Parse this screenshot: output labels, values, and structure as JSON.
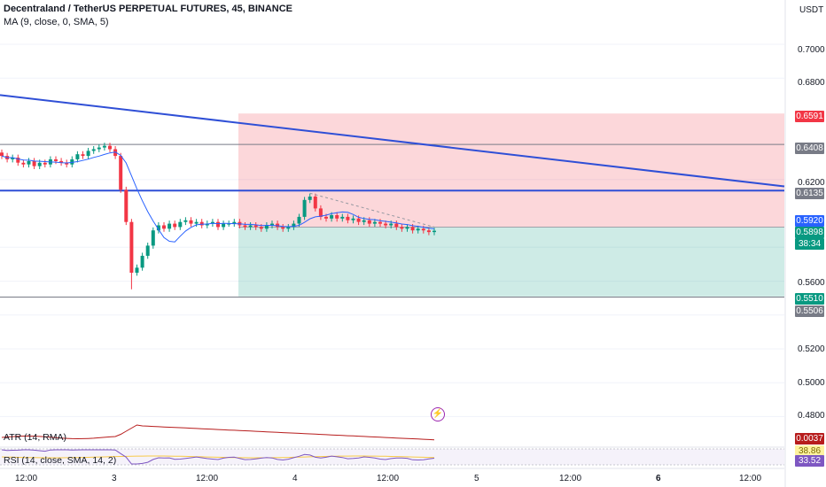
{
  "header": {
    "symbol_line": "Decentraland / TetherUS PERPETUAL FUTURES, 45, BINANCE",
    "ma_line": "MA (9, close, 0, SMA, 5)"
  },
  "price_axis": {
    "currency": "USDT",
    "ticks": [
      "0.7000",
      "0.6800",
      "0.6200",
      "0.5600",
      "0.5200",
      "0.5000",
      "0.4800"
    ]
  },
  "price_tags": {
    "stop": "0.6591",
    "level_top": "0.6408",
    "resistance": "0.6135",
    "entry": "0.5920",
    "last": "0.5898",
    "countdown": "38:34",
    "target": "0.5510",
    "level_bottom": "0.5506",
    "atr_value": "0.0037",
    "rsi_ma": "38.86",
    "rsi_value": "33.52"
  },
  "time_axis": {
    "labels": [
      "12:00",
      "3",
      "12:00",
      "4",
      "12:00",
      "5",
      "12:00",
      "6",
      "12:00"
    ]
  },
  "indicators": {
    "atr_label": "ATR (14, RMA)",
    "rsi_label": "RSI (14, close, SMA, 14, 2)"
  },
  "colors": {
    "up": "#089981",
    "down": "#f23645",
    "trendline": "#2f4fd6",
    "ma": "#2962ff",
    "stop_zone": "rgba(242,54,69,0.20)",
    "target_zone": "rgba(8,153,129,0.20)",
    "atr": "#b71c1c",
    "rsi": "#7e57c2"
  },
  "chart_data": {
    "type": "candlestick",
    "title": "Decentraland / TetherUS PERPETUAL FUTURES, 45, BINANCE",
    "ylim": [
      0.47,
      0.72
    ],
    "hlines": [
      0.6408,
      0.6135,
      0.5506
    ],
    "position": {
      "entry": 0.592,
      "stop": 0.6591,
      "target": 0.551
    },
    "series_close": [
      0.634,
      0.632,
      0.633,
      0.63,
      0.629,
      0.631,
      0.628,
      0.63,
      0.629,
      0.632,
      0.631,
      0.63,
      0.629,
      0.632,
      0.635,
      0.634,
      0.637,
      0.638,
      0.639,
      0.64,
      0.638,
      0.634,
      0.614,
      0.595,
      0.565,
      0.568,
      0.575,
      0.581,
      0.59,
      0.593,
      0.591,
      0.594,
      0.592,
      0.595,
      0.596,
      0.594,
      0.595,
      0.593,
      0.594,
      0.595,
      0.592,
      0.594,
      0.594,
      0.595,
      0.593,
      0.592,
      0.593,
      0.592,
      0.591,
      0.593,
      0.594,
      0.592,
      0.591,
      0.592,
      0.594,
      0.598,
      0.608,
      0.61,
      0.603,
      0.598,
      0.597,
      0.599,
      0.597,
      0.598,
      0.596,
      0.597,
      0.595,
      0.596,
      0.594,
      0.595,
      0.594,
      0.593,
      0.594,
      0.592,
      0.591,
      0.592,
      0.59,
      0.591,
      0.59,
      0.589,
      0.5898
    ]
  }
}
